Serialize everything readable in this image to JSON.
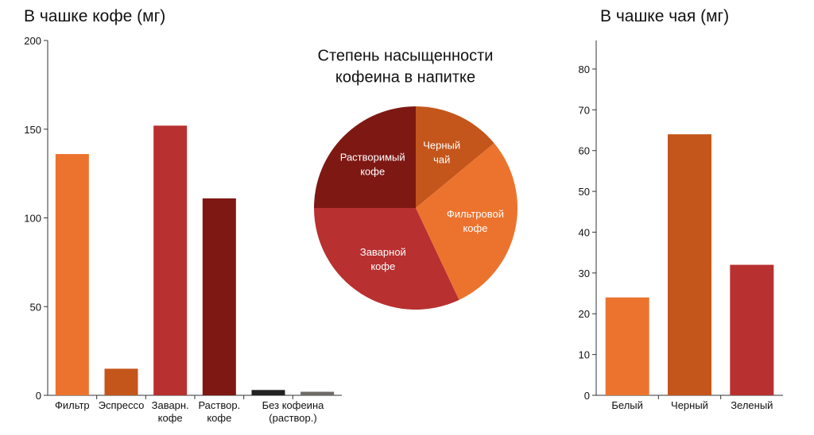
{
  "chart_data": [
    {
      "type": "bar",
      "title": "В чашке кофе (мг)",
      "categories": [
        "Фильтр",
        "Эспрессо",
        "Заварн.\nкофе",
        "Раствор.\nкофе",
        "Без кофеина\n(раствор.)",
        null
      ],
      "values": [
        136,
        15,
        152,
        111,
        3,
        2
      ],
      "colors": [
        "#ec732e",
        "#c4561b",
        "#b83030",
        "#7e1813",
        "#222222",
        "#6e6a66"
      ],
      "ylim": [
        0,
        200
      ],
      "yticks": [
        0,
        50,
        100,
        150,
        200
      ]
    },
    {
      "type": "pie",
      "title": "Степень насыщенности\nкофеина в напитке",
      "categories": [
        "Черный\nчай",
        "Фильтровой\nкофе",
        "Заварной\nкофе",
        "Растворимый\nкофе"
      ],
      "values": [
        14,
        29,
        32,
        25
      ],
      "colors": [
        "#c4561b",
        "#ec732e",
        "#b83030",
        "#7e1813"
      ]
    },
    {
      "type": "bar",
      "title": "В чашке чая (мг)",
      "categories": [
        "Белый",
        "Черный",
        "Зеленый"
      ],
      "values": [
        24,
        64,
        32
      ],
      "colors": [
        "#ec732e",
        "#c4561b",
        "#b83030"
      ],
      "ylim": [
        0,
        87
      ],
      "yticks": [
        0,
        10,
        20,
        30,
        40,
        50,
        60,
        70,
        80
      ]
    }
  ]
}
